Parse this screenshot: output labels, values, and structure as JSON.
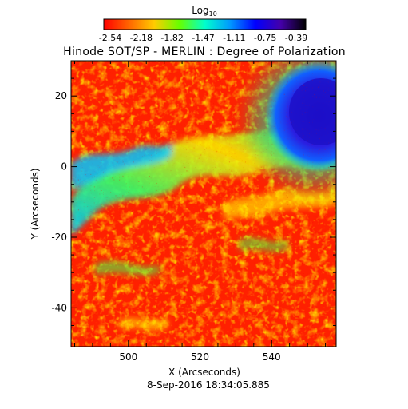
{
  "colorbar": {
    "label_base": "Log",
    "label_sub": "10",
    "tick_labels": [
      "-2.54",
      "-2.18",
      "-1.82",
      "-1.47",
      "-1.11",
      "-0.75",
      "-0.39"
    ],
    "colors": [
      "#ff0000",
      "#ff6600",
      "#ffcc00",
      "#66ff00",
      "#00ffcc",
      "#0099ff",
      "#0000ff",
      "#4400aa",
      "#000000"
    ]
  },
  "title": "Hinode SOT/SP - MERLIN : Degree of Polarization",
  "x_axis": {
    "label": "X (Arcseconds)",
    "range": [
      484,
      558
    ],
    "ticks": [
      500,
      520,
      540
    ],
    "tick_labels": [
      "500",
      "520",
      "540"
    ]
  },
  "y_axis": {
    "label": "Y (Arcseconds)",
    "range": [
      -51,
      30
    ],
    "ticks": [
      20,
      0,
      -20,
      -40
    ],
    "tick_labels": [
      "20",
      "0",
      "-20",
      "-40"
    ]
  },
  "timestamp": "8-Sep-2016 18:34:05.885",
  "map": {
    "background_level": "low (red)",
    "features": [
      {
        "name": "sunspot",
        "level": "high (blue/violet)",
        "location": "upper-right"
      },
      {
        "name": "diagonal filament band",
        "level": "mid (yellow/green/cyan)",
        "location": "left to centre"
      }
    ]
  }
}
